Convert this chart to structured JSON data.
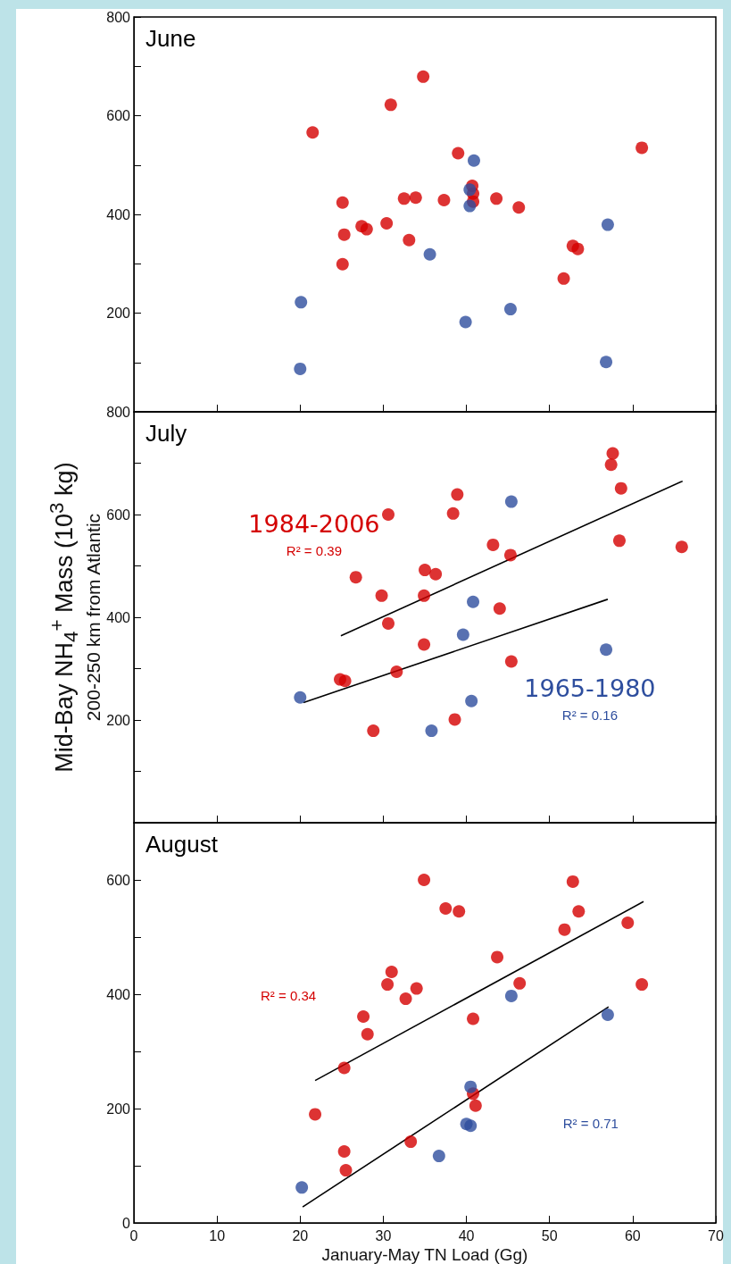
{
  "chart_data": [
    {
      "type": "scatter",
      "title": "June",
      "marker": "circle",
      "xlim": [
        0,
        70
      ],
      "xticks": [
        0,
        10,
        20,
        30,
        40,
        50,
        60,
        70
      ],
      "ylim": [
        0,
        800
      ],
      "yticks": [
        {
          "value": 0,
          "label": null
        },
        {
          "value": 100,
          "label": null
        },
        200,
        {
          "value": 300,
          "label": null
        },
        400,
        {
          "value": 500,
          "label": null
        },
        600,
        {
          "value": 700,
          "label": null
        },
        800
      ],
      "tick_labels": "y",
      "series": [
        {
          "color": "#d40000",
          "x": [
            21.5,
            30.9,
            34.8,
            25.1,
            25.3,
            25.1,
            27.4,
            28.0,
            30.4,
            33.1,
            32.5,
            33.9,
            37.3,
            39.0,
            40.7,
            40.8,
            40.8,
            43.6,
            46.3,
            51.7,
            52.8,
            53.4,
            61.1
          ],
          "values": [
            566,
            622,
            679,
            424,
            359,
            299,
            376,
            370,
            382,
            348,
            432,
            434,
            429,
            524,
            458,
            442,
            426,
            432,
            414,
            270,
            336,
            330,
            535
          ]
        },
        {
          "color": "#2e4e9e",
          "x": [
            20.1,
            20.0,
            35.6,
            39.9,
            40.9,
            40.4,
            40.4,
            45.3,
            57.0,
            56.8
          ],
          "values": [
            222,
            87,
            319,
            182,
            509,
            450,
            417,
            208,
            379,
            101
          ]
        }
      ]
    },
    {
      "type": "scatter",
      "title": "July",
      "ylabel": "Mid-Bay NH$_{4}$$^{+}$ Mass (10$^{3}$ kg)\n200-250 km from Atlantic",
      "xlim": [
        0,
        70
      ],
      "xticks": [
        0,
        10,
        20,
        30,
        40,
        50,
        60,
        70
      ],
      "ylim": [
        0,
        800
      ],
      "yticks": [
        {
          "value": 0,
          "label": null
        },
        {
          "value": 100,
          "label": null
        },
        200,
        {
          "value": 300,
          "label": null
        },
        400,
        {
          "value": 500,
          "label": null
        },
        600,
        {
          "value": 700,
          "label": null
        },
        800
      ],
      "tick_labels": "y",
      "annotations": [
        "R² = 0.39",
        "R² = 0.16"
      ],
      "series": [
        {
          "name": "1984-2006",
          "marker": "circle",
          "color": "#d40000",
          "x": [
            57.6,
            57.4,
            58.6,
            58.4,
            65.9,
            38.9,
            38.4,
            30.6,
            43.2,
            45.3,
            26.7,
            35.0,
            36.3,
            29.8,
            34.9,
            44.0,
            30.6,
            34.9,
            45.4,
            31.6,
            24.8,
            25.4,
            28.8,
            38.6
          ],
          "values": [
            719,
            697,
            651,
            549,
            537,
            639,
            602,
            600,
            541,
            521,
            478,
            492,
            484,
            442,
            442,
            417,
            388,
            347,
            314,
            294,
            279,
            276,
            179,
            201
          ]
        },
        {
          "name": "1965-1980",
          "marker": "circle",
          "color": "#2e4e9e",
          "x": [
            45.4,
            40.8,
            39.6,
            56.8,
            20.0,
            40.6,
            35.8
          ],
          "values": [
            625,
            430,
            366,
            337,
            244,
            237,
            179
          ]
        },
        {
          "type": "line",
          "marker": "none",
          "color": "#000000",
          "x": [
            24.9,
            66.0
          ],
          "values": [
            364,
            665
          ]
        },
        {
          "type": "line",
          "marker": "none",
          "color": "#000000",
          "x": [
            20.4,
            57.0
          ],
          "values": [
            234,
            435
          ]
        }
      ]
    },
    {
      "type": "scatter",
      "title": "August",
      "xlabel": "January-May TN Load (Gg)",
      "xlim": [
        0,
        70
      ],
      "xticks": [
        0,
        10,
        20,
        30,
        40,
        50,
        60,
        70
      ],
      "ylim": [
        0,
        700
      ],
      "yticks": [
        0,
        {
          "value": 100,
          "label": null
        },
        200,
        {
          "value": 300,
          "label": null
        },
        400,
        {
          "value": 500,
          "label": null
        },
        600
      ],
      "annotations": [
        "R² = 0.34",
        "R² = 0.71"
      ],
      "series": [
        {
          "color": "#d40000",
          "marker": "circle",
          "x": [
            34.9,
            52.8,
            37.5,
            39.1,
            53.5,
            59.4,
            51.8,
            43.7,
            31.0,
            30.5,
            46.4,
            61.1,
            34.0,
            32.7,
            27.6,
            40.8,
            28.1,
            25.3,
            40.8,
            41.1,
            21.8,
            33.3,
            25.3,
            25.5
          ],
          "values": [
            600,
            597,
            550,
            545,
            545,
            525,
            513,
            465,
            439,
            417,
            419,
            417,
            410,
            392,
            361,
            357,
            330,
            271,
            226,
            205,
            190,
            142,
            125,
            92
          ]
        },
        {
          "color": "#2e4e9e",
          "marker": "circle",
          "x": [
            45.4,
            57.0,
            40.5,
            40.0,
            40.5,
            36.7,
            20.2
          ],
          "values": [
            397,
            364,
            238,
            173,
            170,
            117,
            62
          ]
        },
        {
          "type": "line",
          "marker": "none",
          "color": "#000000",
          "x": [
            21.8,
            61.3
          ],
          "values": [
            249,
            562
          ]
        },
        {
          "type": "line",
          "marker": "none",
          "color": "#000000",
          "x": [
            20.3,
            57.1
          ],
          "values": [
            28,
            378
          ]
        }
      ]
    }
  ]
}
